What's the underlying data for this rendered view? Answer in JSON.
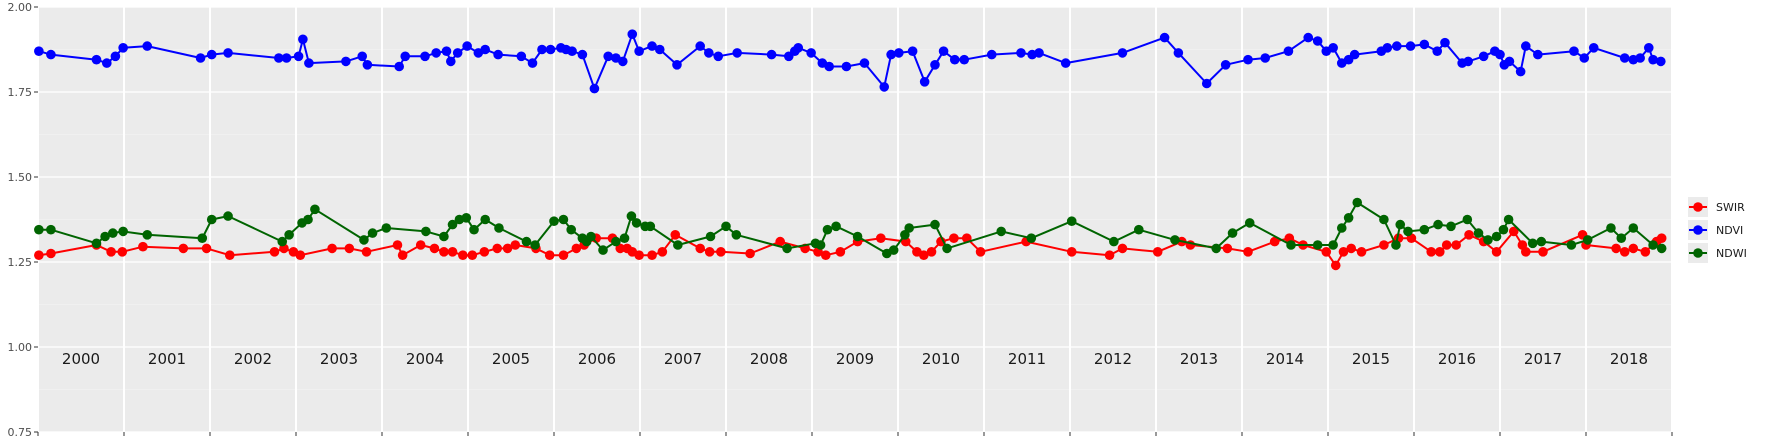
{
  "chart_data": {
    "type": "line",
    "title": "",
    "xlabel": "",
    "ylabel": "",
    "ylim": [
      0.75,
      2.0
    ],
    "xlim": [
      2000.0,
      2019.0
    ],
    "yticks": [
      0.75,
      1.0,
      1.25,
      1.5,
      1.75,
      2.0
    ],
    "ytick_labels": [
      "0.75",
      "1.00",
      "1.25",
      "1.50",
      "1.75",
      "2.00"
    ],
    "year_labels": [
      "2000",
      "2001",
      "2002",
      "2003",
      "2004",
      "2005",
      "2006",
      "2007",
      "2008",
      "2009",
      "2010",
      "2011",
      "2012",
      "2013",
      "2014",
      "2015",
      "2016",
      "2017",
      "2018"
    ],
    "grid": true,
    "panel_background": "#ebebeb",
    "legend_position": "right",
    "series": [
      {
        "name": "SWIR",
        "color": "#ff0000",
        "x": [
          2000.01,
          2000.15,
          2000.68,
          2000.85,
          2000.98,
          2001.22,
          2001.69,
          2001.96,
          2002.23,
          2002.75,
          2002.86,
          2002.97,
          2003.05,
          2003.42,
          2003.62,
          2003.82,
          2004.18,
          2004.24,
          2004.45,
          2004.61,
          2004.72,
          2004.82,
          2004.94,
          2005.05,
          2005.19,
          2005.34,
          2005.46,
          2005.55,
          2005.79,
          2005.95,
          2006.11,
          2006.26,
          2006.35,
          2006.49,
          2006.68,
          2006.77,
          2006.85,
          2006.91,
          2006.99,
          2007.14,
          2007.26,
          2007.41,
          2007.7,
          2007.81,
          2007.94,
          2008.28,
          2008.63,
          2008.92,
          2009.07,
          2009.16,
          2009.33,
          2009.53,
          2009.8,
          2010.09,
          2010.22,
          2010.3,
          2010.39,
          2010.5,
          2010.65,
          2010.8,
          2010.96,
          2011.49,
          2012.02,
          2012.46,
          2012.61,
          2013.02,
          2013.3,
          2013.4,
          2013.83,
          2014.07,
          2014.38,
          2014.55,
          2014.71,
          2014.98,
          2015.09,
          2015.18,
          2015.27,
          2015.39,
          2015.65,
          2015.82,
          2015.97,
          2016.2,
          2016.3,
          2016.38,
          2016.49,
          2016.64,
          2016.81,
          2016.96,
          2017.16,
          2017.26,
          2017.3,
          2017.5,
          2017.96,
          2018.0,
          2018.35,
          2018.45,
          2018.55,
          2018.69,
          2018.82,
          2018.88
        ],
        "y": [
          1.27,
          1.275,
          1.3,
          1.28,
          1.28,
          1.295,
          1.29,
          1.29,
          1.27,
          1.28,
          1.29,
          1.28,
          1.27,
          1.29,
          1.29,
          1.28,
          1.3,
          1.27,
          1.3,
          1.29,
          1.28,
          1.28,
          1.27,
          1.27,
          1.28,
          1.29,
          1.29,
          1.3,
          1.29,
          1.27,
          1.27,
          1.29,
          1.3,
          1.32,
          1.32,
          1.29,
          1.29,
          1.28,
          1.27,
          1.27,
          1.28,
          1.33,
          1.29,
          1.28,
          1.28,
          1.275,
          1.31,
          1.29,
          1.28,
          1.27,
          1.28,
          1.31,
          1.32,
          1.31,
          1.28,
          1.27,
          1.28,
          1.31,
          1.32,
          1.32,
          1.28,
          1.31,
          1.28,
          1.27,
          1.29,
          1.28,
          1.31,
          1.3,
          1.29,
          1.28,
          1.31,
          1.32,
          1.3,
          1.28,
          1.24,
          1.28,
          1.29,
          1.28,
          1.3,
          1.32,
          1.32,
          1.28,
          1.28,
          1.3,
          1.3,
          1.33,
          1.31,
          1.28,
          1.34,
          1.3,
          1.28,
          1.28,
          1.33,
          1.3,
          1.29,
          1.28,
          1.29,
          1.28,
          1.31,
          1.32
        ]
      },
      {
        "name": "NDVI",
        "color": "#0000ff",
        "x": [
          2000.01,
          2000.15,
          2000.68,
          2000.8,
          2000.9,
          2000.99,
          2001.27,
          2001.89,
          2002.02,
          2002.21,
          2002.8,
          2002.89,
          2003.03,
          2003.08,
          2003.15,
          2003.58,
          2003.77,
          2003.83,
          2004.2,
          2004.27,
          2004.5,
          2004.63,
          2004.75,
          2004.8,
          2004.88,
          2004.99,
          2005.12,
          2005.2,
          2005.35,
          2005.62,
          2005.75,
          2005.86,
          2005.96,
          2006.08,
          2006.14,
          2006.21,
          2006.33,
          2006.47,
          2006.63,
          2006.72,
          2006.8,
          2006.91,
          2006.99,
          2007.14,
          2007.23,
          2007.43,
          2007.7,
          2007.8,
          2007.91,
          2008.13,
          2008.53,
          2008.73,
          2008.8,
          2008.84,
          2008.99,
          2009.12,
          2009.2,
          2009.4,
          2009.61,
          2009.84,
          2009.92,
          2010.01,
          2010.17,
          2010.31,
          2010.43,
          2010.53,
          2010.66,
          2010.77,
          2011.09,
          2011.43,
          2011.56,
          2011.64,
          2011.95,
          2012.61,
          2013.1,
          2013.26,
          2013.59,
          2013.81,
          2014.07,
          2014.27,
          2014.54,
          2014.77,
          2014.88,
          2014.98,
          2015.06,
          2015.16,
          2015.24,
          2015.31,
          2015.62,
          2015.69,
          2015.8,
          2015.96,
          2016.12,
          2016.27,
          2016.36,
          2016.56,
          2016.63,
          2016.81,
          2016.94,
          2017.0,
          2017.05,
          2017.11,
          2017.24,
          2017.3,
          2017.44,
          2017.86,
          2017.98,
          2018.09,
          2018.45,
          2018.55,
          2018.63,
          2018.73,
          2018.78,
          2018.87
        ],
        "y": [
          1.87,
          1.86,
          1.845,
          1.835,
          1.855,
          1.88,
          1.885,
          1.85,
          1.86,
          1.865,
          1.85,
          1.85,
          1.855,
          1.905,
          1.835,
          1.84,
          1.855,
          1.83,
          1.825,
          1.855,
          1.855,
          1.865,
          1.87,
          1.84,
          1.865,
          1.885,
          1.865,
          1.875,
          1.86,
          1.855,
          1.835,
          1.875,
          1.875,
          1.88,
          1.875,
          1.87,
          1.86,
          1.76,
          1.855,
          1.85,
          1.84,
          1.92,
          1.87,
          1.885,
          1.875,
          1.83,
          1.885,
          1.865,
          1.855,
          1.865,
          1.86,
          1.855,
          1.87,
          1.88,
          1.865,
          1.835,
          1.825,
          1.825,
          1.835,
          1.765,
          1.86,
          1.865,
          1.87,
          1.78,
          1.83,
          1.87,
          1.845,
          1.845,
          1.86,
          1.865,
          1.86,
          1.865,
          1.835,
          1.865,
          1.91,
          1.865,
          1.775,
          1.83,
          1.845,
          1.85,
          1.87,
          1.91,
          1.9,
          1.87,
          1.88,
          1.835,
          1.845,
          1.86,
          1.87,
          1.88,
          1.885,
          1.885,
          1.89,
          1.87,
          1.895,
          1.835,
          1.84,
          1.855,
          1.87,
          1.86,
          1.83,
          1.84,
          1.81,
          1.885,
          1.86,
          1.87,
          1.85,
          1.88,
          1.85,
          1.845,
          1.85,
          1.88,
          1.845,
          1.84
        ]
      },
      {
        "name": "NDWI",
        "color": "#006400",
        "x": [
          2000.01,
          2000.15,
          2000.68,
          2000.78,
          2000.87,
          2000.99,
          2001.27,
          2001.91,
          2002.02,
          2002.21,
          2002.84,
          2002.92,
          2003.07,
          2003.14,
          2003.22,
          2003.79,
          2003.89,
          2004.05,
          2004.51,
          2004.72,
          2004.82,
          2004.9,
          2004.98,
          2005.07,
          2005.2,
          2005.36,
          2005.68,
          2005.78,
          2006.0,
          2006.11,
          2006.2,
          2006.33,
          2006.38,
          2006.43,
          2006.57,
          2006.72,
          2006.82,
          2006.9,
          2006.96,
          2007.06,
          2007.12,
          2007.44,
          2007.82,
          2008.0,
          2008.12,
          2008.71,
          2009.04,
          2009.1,
          2009.18,
          2009.28,
          2009.53,
          2009.87,
          2009.95,
          2010.08,
          2010.13,
          2010.43,
          2010.57,
          2011.2,
          2011.55,
          2012.02,
          2012.51,
          2012.8,
          2013.22,
          2013.7,
          2013.89,
          2014.09,
          2014.57,
          2014.88,
          2015.06,
          2015.16,
          2015.24,
          2015.34,
          2015.65,
          2015.79,
          2015.84,
          2015.93,
          2016.12,
          2016.28,
          2016.43,
          2016.62,
          2016.75,
          2016.86,
          2016.96,
          2017.04,
          2017.1,
          2017.38,
          2017.48,
          2017.83,
          2018.02,
          2018.29,
          2018.41,
          2018.55,
          2018.78,
          2018.88
        ],
        "y": [
          1.345,
          1.345,
          1.305,
          1.325,
          1.335,
          1.34,
          1.33,
          1.32,
          1.375,
          1.385,
          1.31,
          1.33,
          1.365,
          1.375,
          1.405,
          1.315,
          1.335,
          1.35,
          1.34,
          1.325,
          1.36,
          1.375,
          1.38,
          1.345,
          1.375,
          1.35,
          1.31,
          1.3,
          1.37,
          1.375,
          1.345,
          1.32,
          1.31,
          1.325,
          1.285,
          1.31,
          1.32,
          1.385,
          1.365,
          1.355,
          1.355,
          1.3,
          1.325,
          1.355,
          1.33,
          1.29,
          1.305,
          1.3,
          1.345,
          1.355,
          1.325,
          1.275,
          1.285,
          1.33,
          1.35,
          1.36,
          1.29,
          1.34,
          1.32,
          1.37,
          1.31,
          1.345,
          1.315,
          1.29,
          1.335,
          1.365,
          1.3,
          1.3,
          1.3,
          1.35,
          1.38,
          1.425,
          1.375,
          1.3,
          1.36,
          1.34,
          1.345,
          1.36,
          1.355,
          1.375,
          1.335,
          1.315,
          1.325,
          1.345,
          1.375,
          1.305,
          1.31,
          1.3,
          1.315,
          1.35,
          1.32,
          1.35,
          1.3,
          1.29
        ]
      }
    ]
  }
}
